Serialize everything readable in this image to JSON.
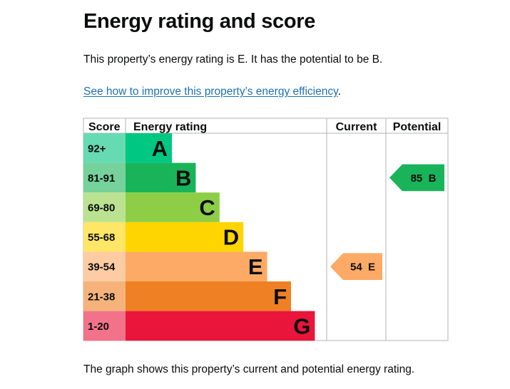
{
  "page": {
    "title": "Energy rating and score",
    "summary": "This property’s energy rating is E. It has the potential to be B.",
    "improve_link": "See how to improve this property’s energy efficiency",
    "improve_suffix": ".",
    "caption": "The graph shows this property’s current and potential energy rating."
  },
  "chart_data": {
    "type": "bar",
    "title": "Energy rating",
    "headers": {
      "score": "Score",
      "rating": "Energy rating",
      "current": "Current",
      "potential": "Potential"
    },
    "bands": [
      {
        "score": "92+",
        "letter": "A",
        "color": "#00c781",
        "light": "#66dab3"
      },
      {
        "score": "81-91",
        "letter": "B",
        "color": "#19b459",
        "light": "#75d29b"
      },
      {
        "score": "69-80",
        "letter": "C",
        "color": "#8dce46",
        "light": "#bbe290"
      },
      {
        "score": "55-68",
        "letter": "D",
        "color": "#ffd500",
        "light": "#ffe666"
      },
      {
        "score": "39-54",
        "letter": "E",
        "color": "#fcaa65",
        "light": "#fdcca3"
      },
      {
        "score": "21-38",
        "letter": "F",
        "color": "#ef8023",
        "light": "#f5b37b"
      },
      {
        "score": "1-20",
        "letter": "G",
        "color": "#e9153b",
        "light": "#f27389"
      }
    ],
    "current": {
      "value": 54,
      "letter": "E",
      "label": "54  E",
      "color": "#fcaa65"
    },
    "potential": {
      "value": 85,
      "letter": "B",
      "label": "85  B",
      "color": "#19b459"
    }
  }
}
